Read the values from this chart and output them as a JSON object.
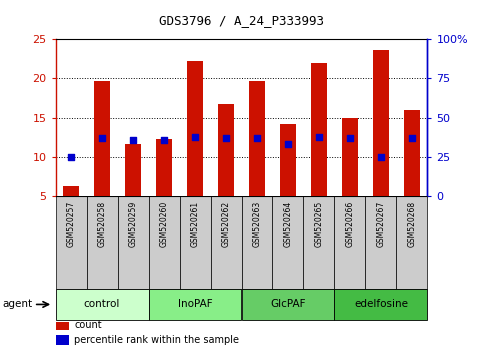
{
  "title": "GDS3796 / A_24_P333993",
  "samples": [
    "GSM520257",
    "GSM520258",
    "GSM520259",
    "GSM520260",
    "GSM520261",
    "GSM520262",
    "GSM520263",
    "GSM520264",
    "GSM520265",
    "GSM520266",
    "GSM520267",
    "GSM520268"
  ],
  "counts": [
    6.3,
    19.7,
    11.7,
    12.3,
    22.2,
    16.7,
    19.7,
    14.2,
    22.0,
    14.9,
    23.6,
    16.0
  ],
  "percentiles": [
    25,
    37,
    36,
    36,
    38,
    37,
    37,
    33,
    38,
    37,
    25,
    37
  ],
  "bar_color": "#cc1100",
  "dot_color": "#0000cc",
  "ylim_left": [
    5,
    25
  ],
  "ylim_right": [
    0,
    100
  ],
  "yticks_left": [
    5,
    10,
    15,
    20,
    25
  ],
  "yticks_right": [
    0,
    25,
    50,
    75,
    100
  ],
  "ytick_labels_right": [
    "0",
    "25",
    "50",
    "75",
    "100%"
  ],
  "groups": [
    {
      "label": "control",
      "start": 0,
      "end": 3,
      "color": "#ccffcc"
    },
    {
      "label": "InoPAF",
      "start": 3,
      "end": 6,
      "color": "#88ee88"
    },
    {
      "label": "GlcPAF",
      "start": 6,
      "end": 9,
      "color": "#66cc66"
    },
    {
      "label": "edelfosine",
      "start": 9,
      "end": 12,
      "color": "#44bb44"
    }
  ],
  "agent_label": "agent",
  "legend_items": [
    {
      "color": "#cc1100",
      "label": "count"
    },
    {
      "color": "#0000cc",
      "label": "percentile rank within the sample"
    }
  ],
  "bar_width": 0.5,
  "grid_color": "black",
  "left_axis_color": "#cc1100",
  "right_axis_color": "#0000cc",
  "bar_bottom": 5,
  "dot_size": 18,
  "chart_bg": "#ffffff",
  "sample_bg": "#cccccc"
}
